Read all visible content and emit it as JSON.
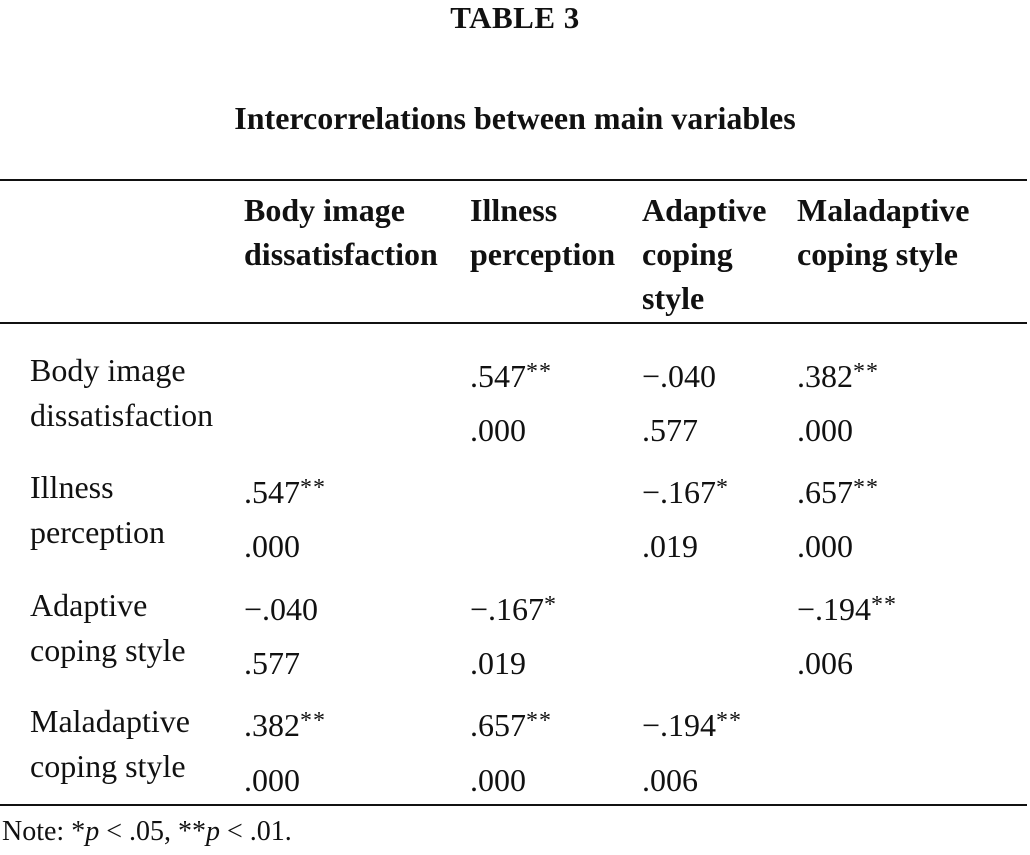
{
  "table_label": "TABLE 3",
  "table_title": "Intercorrelations between main variables",
  "columns": [
    {
      "lines": [
        "Body image",
        "dissatisfaction"
      ]
    },
    {
      "lines": [
        "Illness",
        "perception"
      ]
    },
    {
      "lines": [
        "Adaptive",
        "coping",
        "style"
      ]
    },
    {
      "lines": [
        "Maladaptive",
        "coping style"
      ]
    }
  ],
  "rows": [
    {
      "label_lines": [
        "Body image",
        "dissatisfaction"
      ],
      "cells": [
        {
          "r": "",
          "sig": "",
          "p": ""
        },
        {
          "r": ".547",
          "sig": "**",
          "p": ".000"
        },
        {
          "r": "−.040",
          "sig": "",
          "p": ".577"
        },
        {
          "r": ".382",
          "sig": "**",
          "p": ".000"
        }
      ]
    },
    {
      "label_lines": [
        "Illness",
        "perception"
      ],
      "cells": [
        {
          "r": ".547",
          "sig": "**",
          "p": ".000"
        },
        {
          "r": "",
          "sig": "",
          "p": ""
        },
        {
          "r": "−.167",
          "sig": "*",
          "p": ".019"
        },
        {
          "r": ".657",
          "sig": "**",
          "p": ".000"
        }
      ]
    },
    {
      "label_lines": [
        "Adaptive",
        "coping style"
      ],
      "cells": [
        {
          "r": "−.040",
          "sig": "",
          "p": ".577"
        },
        {
          "r": "−.167",
          "sig": "*",
          "p": ".019"
        },
        {
          "r": "",
          "sig": "",
          "p": ""
        },
        {
          "r": "−.194",
          "sig": "**",
          "p": ".006"
        }
      ]
    },
    {
      "label_lines": [
        "Maladaptive",
        "coping style"
      ],
      "cells": [
        {
          "r": ".382",
          "sig": "**",
          "p": ".000"
        },
        {
          "r": ".657",
          "sig": "**",
          "p": ".000"
        },
        {
          "r": "−.194",
          "sig": "**",
          "p": ".006"
        },
        {
          "r": "",
          "sig": "",
          "p": ""
        }
      ]
    }
  ],
  "note": {
    "prefix": "Note: ",
    "sig1": "*",
    "p_symbol": "p",
    "text1": " < .05, ",
    "sig2": "**",
    "text2": " < .01."
  }
}
